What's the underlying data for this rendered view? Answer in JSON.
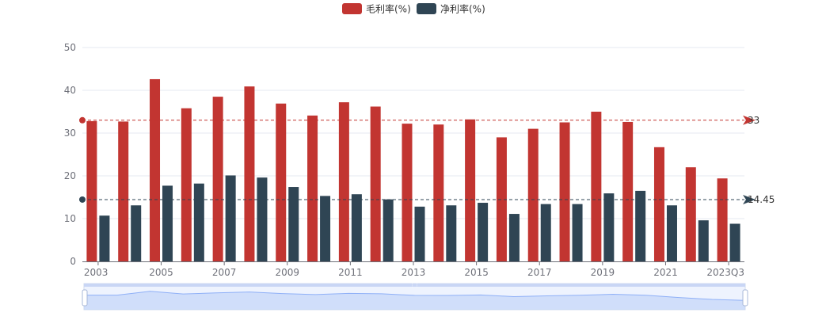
{
  "chart_data": {
    "type": "bar",
    "categories": [
      "2003",
      "2004",
      "2005",
      "2006",
      "2007",
      "2008",
      "2009",
      "2010",
      "2011",
      "2012",
      "2013",
      "2014",
      "2015",
      "2016",
      "2017",
      "2018",
      "2019",
      "2020",
      "2021",
      "2022",
      "2023Q3"
    ],
    "x_tick_labels": [
      "2003",
      "2005",
      "2007",
      "2009",
      "2011",
      "2013",
      "2015",
      "2017",
      "2019",
      "2021",
      "2023Q3"
    ],
    "ylim": [
      0,
      50
    ],
    "y_ticks": [
      0,
      10,
      20,
      30,
      40,
      50
    ],
    "grid": true,
    "legend_position": "top",
    "series": [
      {
        "name": "毛利率(%)",
        "color": "#c23531",
        "values": [
          32.8,
          32.7,
          42.6,
          35.8,
          38.5,
          40.9,
          36.9,
          34.1,
          37.2,
          36.2,
          32.2,
          32.0,
          33.2,
          29.0,
          31.0,
          32.5,
          35.0,
          32.6,
          26.7,
          22.0,
          19.4
        ],
        "markline_value": "33"
      },
      {
        "name": "净利率(%)",
        "color": "#2f4554",
        "values": [
          10.7,
          13.1,
          17.7,
          18.2,
          20.1,
          19.6,
          17.4,
          15.3,
          15.7,
          14.5,
          12.8,
          13.1,
          13.7,
          11.1,
          13.4,
          13.4,
          15.9,
          16.5,
          13.1,
          9.6,
          8.8
        ],
        "markline_value": "14.45"
      }
    ]
  }
}
